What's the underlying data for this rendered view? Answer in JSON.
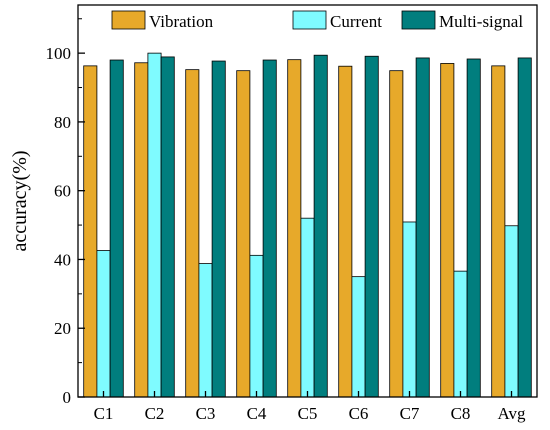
{
  "chart_data": {
    "type": "bar",
    "categories": [
      "C1",
      "C2",
      "C3",
      "C4",
      "C5",
      "C6",
      "C7",
      "C8",
      "Avg"
    ],
    "series": [
      {
        "name": "Vibration",
        "values": [
          96.3,
          97.2,
          95.2,
          94.9,
          98.1,
          96.2,
          94.9,
          97.0,
          96.3
        ]
      },
      {
        "name": "Current",
        "values": [
          42.6,
          100.0,
          38.8,
          41.2,
          52.0,
          35.0,
          50.9,
          36.6,
          49.8
        ]
      },
      {
        "name": "Multi-signal",
        "values": [
          98.0,
          98.9,
          97.7,
          98.0,
          99.4,
          99.1,
          98.6,
          98.3,
          98.6
        ]
      }
    ],
    "title": "",
    "xlabel": "",
    "ylabel": "accuracy(%)",
    "ylim": [
      0,
      114
    ],
    "yticks": [
      0,
      20,
      40,
      60,
      80,
      100
    ],
    "grid": false,
    "legend_position": "top",
    "colors": [
      "#E7A92A",
      "#7FFBFF",
      "#017E7E"
    ]
  }
}
